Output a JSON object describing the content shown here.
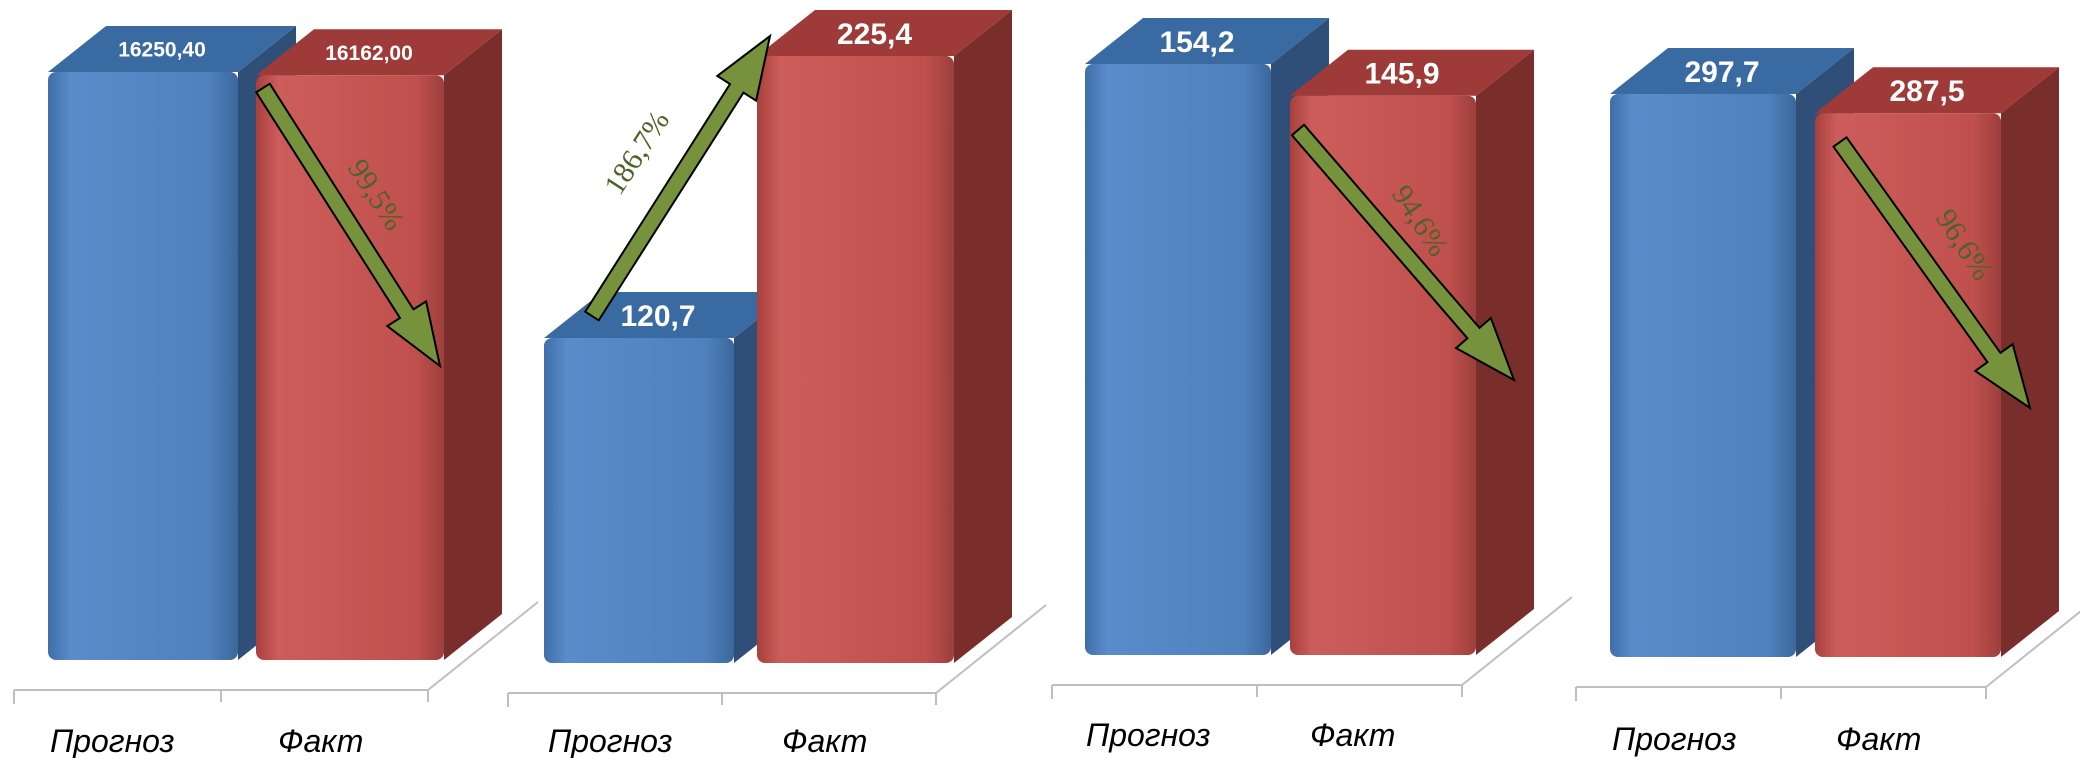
{
  "chart_data": [
    {
      "type": "bar",
      "categories": [
        "Прогноз",
        "Факт"
      ],
      "values": [
        16250.4,
        16162.0
      ],
      "value_labels": [
        "16250,40",
        "16162,00"
      ],
      "ratio_label": "99,5%",
      "ylim": [
        0,
        16800
      ]
    },
    {
      "type": "bar",
      "categories": [
        "Прогноз",
        "Факт"
      ],
      "values": [
        120.7,
        225.4
      ],
      "value_labels": [
        "120,7",
        "225,4"
      ],
      "ratio_label": "186,7%",
      "ylim": [
        0,
        235
      ]
    },
    {
      "type": "bar",
      "categories": [
        "Прогноз",
        "Факт"
      ],
      "values": [
        154.2,
        145.9
      ],
      "value_labels": [
        "154,2",
        "145,9"
      ],
      "ratio_label": "94,6%",
      "ylim": [
        0,
        161
      ]
    },
    {
      "type": "bar",
      "categories": [
        "Прогноз",
        "Факт"
      ],
      "values": [
        297.7,
        287.5
      ],
      "value_labels": [
        "297,7",
        "287,5"
      ],
      "ratio_label": "96,6%",
      "ylim": [
        0,
        331
      ]
    }
  ],
  "colors": {
    "forecast_front": "#4f81bd",
    "forecast_top": "#3a6aa2",
    "forecast_side": "#2f4f78",
    "fact_front": "#c0504d",
    "fact_top": "#9e3a37",
    "fact_side": "#7a2e2c",
    "arrow_fill": "#76923c",
    "arrow_stroke": "#000000",
    "ratio_text": "#4f6228",
    "floor_line": "#bfbfbf"
  }
}
